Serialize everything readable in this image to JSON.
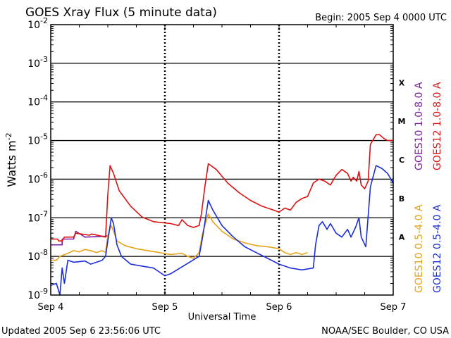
{
  "header": {
    "title": "GOES Xray Flux (5 minute data)",
    "begin": "Begin:  2005 Sep 4 0000 UTC"
  },
  "footer": {
    "updated": "Updated 2005 Sep  6 23:56:06 UTC",
    "source": "NOAA/SEC Boulder, CO USA"
  },
  "chart_data": {
    "type": "line",
    "ylabel": "Watts m",
    "ylabel_sup": "-2",
    "xlabel": "Universal Time",
    "y_scale": "log",
    "ylim_exp": [
      -9,
      -2
    ],
    "y_ticks": [
      {
        "exp": -2,
        "base": "10",
        "sup": "-2"
      },
      {
        "exp": -3,
        "base": "10",
        "sup": "-3"
      },
      {
        "exp": -4,
        "base": "10",
        "sup": "-4"
      },
      {
        "exp": -5,
        "base": "10",
        "sup": "-5"
      },
      {
        "exp": -6,
        "base": "10",
        "sup": "-6"
      },
      {
        "exp": -7,
        "base": "10",
        "sup": "-7"
      },
      {
        "exp": -8,
        "base": "10",
        "sup": "-8"
      },
      {
        "exp": -9,
        "base": "10",
        "sup": "-9"
      }
    ],
    "x_ticks": [
      {
        "day": 0,
        "label": "Sep 4"
      },
      {
        "day": 1,
        "label": "Sep 5"
      },
      {
        "day": 2,
        "label": "Sep 6"
      },
      {
        "day": 3,
        "label": "Sep 7"
      }
    ],
    "xlim_days": [
      0,
      3
    ],
    "flare_classes": [
      {
        "label": "X",
        "exp": -3.5
      },
      {
        "label": "M",
        "exp": -4.5
      },
      {
        "label": "C",
        "exp": -5.5
      },
      {
        "label": "B",
        "exp": -6.5
      },
      {
        "label": "A",
        "exp": -7.5
      }
    ],
    "grid": true,
    "legend_position": "right, rotated",
    "series": [
      {
        "name": "GOES10 1.0-8.0 A",
        "color": "#7a1fa2",
        "points": [
          [
            0.0,
            -7.7
          ],
          [
            0.1,
            -7.7
          ],
          [
            0.1,
            -7.55
          ],
          [
            0.2,
            -7.55
          ],
          [
            0.22,
            -7.35
          ],
          [
            0.3,
            -7.5
          ],
          [
            0.48,
            -7.48
          ],
          [
            0.5,
            -7.46
          ]
        ]
      },
      {
        "name": "GOES12 1.0-8.0 A",
        "color": "#dd1111",
        "points": [
          [
            0.0,
            -7.55
          ],
          [
            0.06,
            -7.55
          ],
          [
            0.07,
            -7.6
          ],
          [
            0.1,
            -7.6
          ],
          [
            0.12,
            -7.5
          ],
          [
            0.2,
            -7.5
          ],
          [
            0.22,
            -7.4
          ],
          [
            0.34,
            -7.45
          ],
          [
            0.36,
            -7.42
          ],
          [
            0.48,
            -7.5
          ],
          [
            0.5,
            -6.4
          ],
          [
            0.52,
            -5.65
          ],
          [
            0.55,
            -5.85
          ],
          [
            0.6,
            -6.3
          ],
          [
            0.7,
            -6.7
          ],
          [
            0.8,
            -6.98
          ],
          [
            0.9,
            -7.1
          ],
          [
            1.05,
            -7.15
          ],
          [
            1.12,
            -7.2
          ],
          [
            1.15,
            -7.05
          ],
          [
            1.2,
            -7.2
          ],
          [
            1.25,
            -7.25
          ],
          [
            1.3,
            -7.2
          ],
          [
            1.32,
            -6.9
          ],
          [
            1.35,
            -6.2
          ],
          [
            1.38,
            -5.6
          ],
          [
            1.45,
            -5.75
          ],
          [
            1.55,
            -6.1
          ],
          [
            1.65,
            -6.35
          ],
          [
            1.75,
            -6.55
          ],
          [
            1.85,
            -6.7
          ],
          [
            1.95,
            -6.8
          ],
          [
            2.0,
            -6.85
          ],
          [
            2.05,
            -6.75
          ],
          [
            2.1,
            -6.8
          ],
          [
            2.15,
            -6.6
          ],
          [
            2.2,
            -6.5
          ],
          [
            2.25,
            -6.45
          ],
          [
            2.3,
            -6.1
          ],
          [
            2.35,
            -6.0
          ],
          [
            2.4,
            -6.05
          ],
          [
            2.45,
            -6.15
          ],
          [
            2.5,
            -5.9
          ],
          [
            2.55,
            -5.75
          ],
          [
            2.6,
            -5.85
          ],
          [
            2.63,
            -6.05
          ],
          [
            2.65,
            -5.95
          ],
          [
            2.68,
            -6.05
          ],
          [
            2.7,
            -5.8
          ],
          [
            2.72,
            -6.15
          ],
          [
            2.75,
            -6.25
          ],
          [
            2.78,
            -6.05
          ],
          [
            2.8,
            -5.1
          ],
          [
            2.85,
            -4.85
          ],
          [
            2.88,
            -4.85
          ],
          [
            2.92,
            -4.95
          ],
          [
            2.95,
            -5.0
          ],
          [
            3.0,
            -5.0
          ]
        ]
      },
      {
        "name": "GOES10 0.5-4.0 A",
        "color": "#e8a317",
        "points": [
          [
            0.0,
            -8.1
          ],
          [
            0.05,
            -8.1
          ],
          [
            0.08,
            -8.0
          ],
          [
            0.15,
            -7.92
          ],
          [
            0.2,
            -7.85
          ],
          [
            0.25,
            -7.88
          ],
          [
            0.3,
            -7.82
          ],
          [
            0.35,
            -7.85
          ],
          [
            0.4,
            -7.9
          ],
          [
            0.45,
            -7.85
          ],
          [
            0.48,
            -7.9
          ],
          [
            0.5,
            -7.45
          ],
          [
            0.53,
            -7.2
          ],
          [
            0.55,
            -7.35
          ],
          [
            0.58,
            -7.6
          ],
          [
            0.65,
            -7.72
          ],
          [
            0.75,
            -7.8
          ],
          [
            0.85,
            -7.85
          ],
          [
            0.95,
            -7.9
          ],
          [
            1.05,
            -7.95
          ],
          [
            1.15,
            -7.92
          ],
          [
            1.2,
            -8.0
          ],
          [
            1.25,
            -8.05
          ],
          [
            1.3,
            -7.9
          ],
          [
            1.33,
            -7.4
          ],
          [
            1.38,
            -6.9
          ],
          [
            1.42,
            -7.1
          ],
          [
            1.5,
            -7.35
          ],
          [
            1.6,
            -7.55
          ],
          [
            1.7,
            -7.65
          ],
          [
            1.8,
            -7.72
          ],
          [
            1.9,
            -7.75
          ],
          [
            2.0,
            -7.8
          ],
          [
            2.05,
            -7.9
          ],
          [
            2.1,
            -7.95
          ],
          [
            2.15,
            -7.9
          ],
          [
            2.2,
            -7.95
          ],
          [
            2.25,
            -7.9
          ]
        ]
      },
      {
        "name": "GOES12 0.5-4.0 A",
        "color": "#1a2ed8",
        "points": [
          [
            0.0,
            -8.75
          ],
          [
            0.05,
            -8.7
          ],
          [
            0.08,
            -9.0
          ],
          [
            0.1,
            -8.3
          ],
          [
            0.12,
            -8.7
          ],
          [
            0.15,
            -8.1
          ],
          [
            0.2,
            -8.15
          ],
          [
            0.3,
            -8.12
          ],
          [
            0.35,
            -8.2
          ],
          [
            0.4,
            -8.15
          ],
          [
            0.45,
            -8.1
          ],
          [
            0.48,
            -8.0
          ],
          [
            0.5,
            -7.6
          ],
          [
            0.53,
            -7.0
          ],
          [
            0.55,
            -7.15
          ],
          [
            0.58,
            -7.7
          ],
          [
            0.62,
            -8.0
          ],
          [
            0.7,
            -8.2
          ],
          [
            0.8,
            -8.25
          ],
          [
            0.9,
            -8.3
          ],
          [
            0.95,
            -8.4
          ],
          [
            1.0,
            -8.5
          ],
          [
            1.05,
            -8.45
          ],
          [
            1.3,
            -8.0
          ],
          [
            1.33,
            -7.5
          ],
          [
            1.38,
            -6.55
          ],
          [
            1.42,
            -6.8
          ],
          [
            1.5,
            -7.2
          ],
          [
            1.6,
            -7.5
          ],
          [
            1.7,
            -7.75
          ],
          [
            1.8,
            -7.9
          ],
          [
            1.9,
            -8.05
          ],
          [
            2.0,
            -8.2
          ],
          [
            2.05,
            -8.25
          ],
          [
            2.1,
            -8.3
          ],
          [
            2.2,
            -8.35
          ],
          [
            2.3,
            -8.3
          ],
          [
            2.32,
            -7.7
          ],
          [
            2.35,
            -7.2
          ],
          [
            2.38,
            -7.1
          ],
          [
            2.42,
            -7.3
          ],
          [
            2.45,
            -7.15
          ],
          [
            2.5,
            -7.4
          ],
          [
            2.55,
            -7.5
          ],
          [
            2.6,
            -7.3
          ],
          [
            2.63,
            -7.5
          ],
          [
            2.67,
            -7.25
          ],
          [
            2.7,
            -7.0
          ],
          [
            2.72,
            -7.5
          ],
          [
            2.76,
            -7.75
          ],
          [
            2.8,
            -6.2
          ],
          [
            2.85,
            -5.65
          ],
          [
            2.9,
            -5.72
          ],
          [
            2.95,
            -5.85
          ],
          [
            3.0,
            -6.1
          ]
        ]
      }
    ]
  }
}
